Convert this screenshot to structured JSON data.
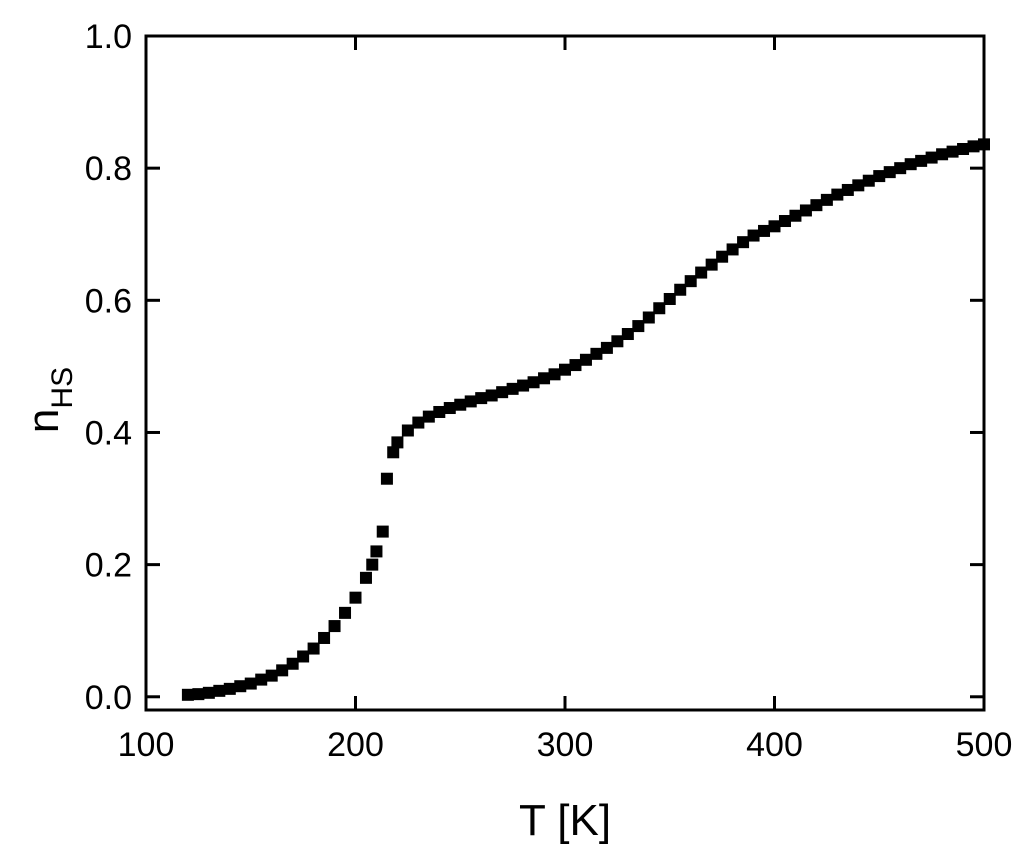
{
  "chart_data": {
    "type": "scatter",
    "xlabel": "T [K]",
    "ylabel": {
      "main": "n",
      "sub": "HS"
    },
    "xlim": [
      100,
      500
    ],
    "xticks": [
      100,
      200,
      300,
      400,
      500
    ],
    "ylim": [
      -0.02,
      1.0
    ],
    "yticks": [
      {
        "value": 0,
        "label": "0.0"
      },
      0.2,
      0.4,
      0.6,
      0.8,
      {
        "value": 1,
        "label": "1.0"
      }
    ],
    "color": "#000000",
    "x": [
      120,
      125,
      130,
      135,
      140,
      145,
      150,
      155,
      160,
      165,
      170,
      175,
      180,
      185,
      190,
      195,
      200,
      205,
      208,
      210,
      213,
      215,
      218,
      220,
      225,
      230,
      235,
      240,
      245,
      250,
      255,
      260,
      265,
      270,
      275,
      280,
      285,
      290,
      295,
      300,
      305,
      310,
      315,
      320,
      325,
      330,
      335,
      340,
      345,
      350,
      355,
      360,
      365,
      370,
      375,
      380,
      385,
      390,
      395,
      400,
      405,
      410,
      415,
      420,
      425,
      430,
      435,
      440,
      445,
      450,
      455,
      460,
      465,
      470,
      475,
      480,
      485,
      490,
      495,
      500
    ],
    "values": [
      0.003,
      0.004,
      0.006,
      0.009,
      0.012,
      0.016,
      0.02,
      0.026,
      0.032,
      0.04,
      0.05,
      0.061,
      0.073,
      0.089,
      0.107,
      0.127,
      0.15,
      0.18,
      0.2,
      0.22,
      0.25,
      0.33,
      0.37,
      0.385,
      0.403,
      0.415,
      0.424,
      0.431,
      0.437,
      0.442,
      0.447,
      0.452,
      0.456,
      0.461,
      0.466,
      0.471,
      0.476,
      0.482,
      0.488,
      0.495,
      0.502,
      0.51,
      0.519,
      0.528,
      0.538,
      0.549,
      0.561,
      0.574,
      0.588,
      0.602,
      0.616,
      0.629,
      0.642,
      0.654,
      0.666,
      0.677,
      0.688,
      0.698,
      0.705,
      0.712,
      0.72,
      0.728,
      0.736,
      0.744,
      0.752,
      0.76,
      0.767,
      0.774,
      0.781,
      0.788,
      0.794,
      0.8,
      0.806,
      0.811,
      0.816,
      0.821,
      0.825,
      0.829,
      0.833,
      0.836
    ]
  }
}
